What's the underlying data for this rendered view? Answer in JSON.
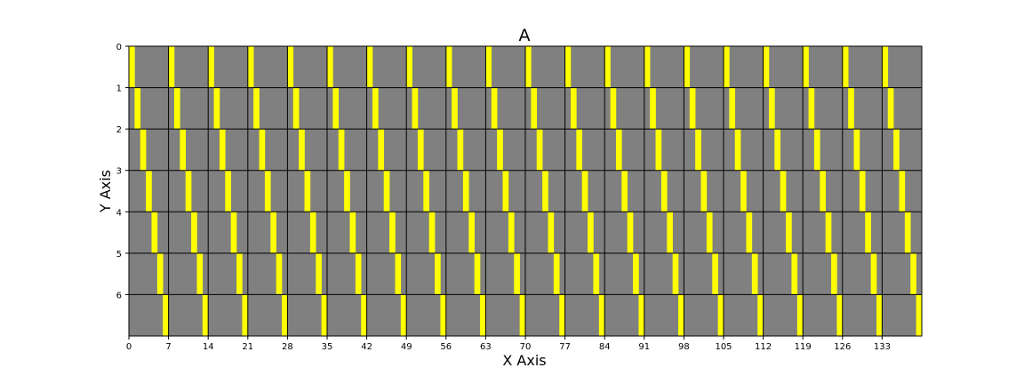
{
  "chart_data": {
    "type": "heatmap",
    "title": "A",
    "xlabel": "X Axis",
    "ylabel": "Y Axis",
    "xlim": [
      0,
      140
    ],
    "ylim": [
      7,
      0
    ],
    "x_ticks": [
      0,
      7,
      14,
      21,
      28,
      35,
      42,
      49,
      56,
      63,
      70,
      77,
      84,
      91,
      98,
      105,
      112,
      119,
      126,
      133
    ],
    "y_ticks": [
      0,
      1,
      2,
      3,
      4,
      5,
      6
    ],
    "rows": 7,
    "columns": 140,
    "block_size": 7,
    "background_value": 0,
    "highlight_value": 1,
    "pattern": "cell (row r, column c) = 1 where c mod 7 == r, else 0",
    "grid": true,
    "colors": {
      "background": "#808080",
      "highlight": "#ffff00",
      "grid": "#000000"
    }
  }
}
